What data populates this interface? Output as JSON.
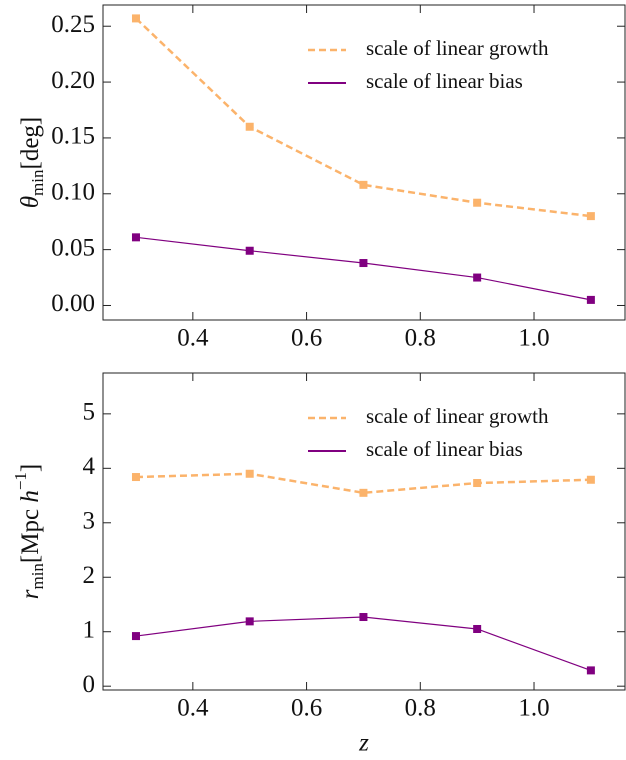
{
  "chart_data": [
    {
      "type": "line",
      "ylabel": [
        "θ",
        "min",
        "[deg]"
      ],
      "x": [
        0.3,
        0.5,
        0.7,
        0.9,
        1.1
      ],
      "series": [
        {
          "name": "scale of linear growth",
          "color": "#fbb36b",
          "dashed": true,
          "values": [
            0.257,
            0.16,
            0.108,
            0.092,
            0.08
          ]
        },
        {
          "name": "scale of linear bias",
          "color": "#800080",
          "dashed": false,
          "values": [
            0.061,
            0.049,
            0.038,
            0.025,
            0.005
          ]
        }
      ],
      "xlim": [
        0.242,
        1.16
      ],
      "ylim": [
        -0.013,
        0.269
      ],
      "xticks": [
        0.4,
        0.6,
        0.8,
        {
          "value": 1.0,
          "label": "1.0"
        }
      ],
      "yticks": [
        {
          "value": 0,
          "label": "0.00"
        },
        0.05,
        {
          "value": 0.1,
          "label": "0.10"
        },
        0.15,
        {
          "value": 0.2,
          "label": "0.20"
        },
        0.25
      ],
      "legend": "top-right"
    },
    {
      "type": "line",
      "ylabel": [
        "r",
        "min",
        "[Mpc ",
        "h",
        "−1",
        "]"
      ],
      "xlabel": "z",
      "x": [
        0.3,
        0.5,
        0.7,
        0.9,
        1.1
      ],
      "series": [
        {
          "name": "scale of linear growth",
          "color": "#fbb36b",
          "dashed": true,
          "values": [
            3.84,
            3.9,
            3.55,
            3.73,
            3.79
          ]
        },
        {
          "name": "scale of linear bias",
          "color": "#800080",
          "dashed": false,
          "values": [
            0.92,
            1.19,
            1.27,
            1.05,
            0.29
          ]
        }
      ],
      "xlim": [
        0.242,
        1.16
      ],
      "ylim": [
        -0.07,
        5.75
      ],
      "xticks": [
        0.4,
        0.6,
        0.8,
        {
          "value": 1.0,
          "label": "1.0"
        }
      ],
      "yticks": [
        0,
        1,
        2,
        3,
        4,
        5
      ],
      "legend": "top-right"
    }
  ]
}
